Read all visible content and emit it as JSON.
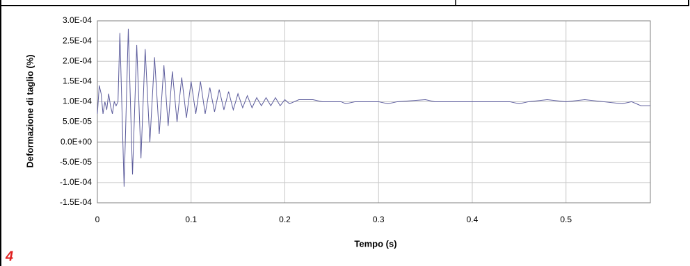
{
  "page_label": "4",
  "chart_data": {
    "type": "line",
    "x_label": "Tempo (s)",
    "y_label": "Deformazione di taglio (%)",
    "color": "#5c5c9c",
    "grid": true,
    "xlim": [
      0,
      0.59
    ],
    "xticks": [
      0,
      0.1,
      0.2,
      0.3,
      0.4,
      0.5
    ],
    "ylim": [
      -0.00015,
      0.0003
    ],
    "yticks": [
      {
        "value": -0.00015,
        "label": "-1.5E-04"
      },
      {
        "value": -0.0001,
        "label": "-1.0E-04"
      },
      {
        "value": -5e-05,
        "label": "-5.0E-05"
      },
      {
        "value": 0,
        "label": "0.0E+00"
      },
      {
        "value": 5e-05,
        "label": "5.0E-05"
      },
      {
        "value": 0.0001,
        "label": "1.0E-04"
      },
      {
        "value": 0.00015,
        "label": "1.5E-04"
      },
      {
        "value": 0.0002,
        "label": "2.0E-04"
      },
      {
        "value": 0.00025,
        "label": "2.5E-04"
      },
      {
        "value": 0.0003,
        "label": "3.0E-04"
      }
    ],
    "x": [
      0,
      0.002,
      0.004,
      0.006,
      0.008,
      0.01,
      0.012,
      0.014,
      0.016,
      0.018,
      0.02,
      0.022,
      0.024,
      0.0285,
      0.033,
      0.0375,
      0.042,
      0.0465,
      0.051,
      0.056,
      0.061,
      0.066,
      0.071,
      0.0755,
      0.08,
      0.085,
      0.09,
      0.095,
      0.1,
      0.105,
      0.11,
      0.115,
      0.12,
      0.125,
      0.13,
      0.135,
      0.14,
      0.145,
      0.15,
      0.155,
      0.16,
      0.165,
      0.17,
      0.175,
      0.18,
      0.185,
      0.19,
      0.195,
      0.2,
      0.205,
      0.21,
      0.215,
      0.23,
      0.24,
      0.26,
      0.265,
      0.275,
      0.3,
      0.31,
      0.32,
      0.35,
      0.36,
      0.4,
      0.44,
      0.45,
      0.46,
      0.48,
      0.5,
      0.52,
      0.54,
      0.56,
      0.57,
      0.58,
      0.59
    ],
    "values": [
      7e-05,
      0.00014,
      0.00012,
      7e-05,
      0.0001,
      8e-05,
      0.00012,
      9e-05,
      7e-05,
      0.0001,
      9e-05,
      0.0001,
      0.00027,
      -0.00011,
      0.00028,
      -8e-05,
      0.00024,
      -4e-05,
      0.00023,
      0,
      0.00021,
      2e-05,
      0.00019,
      4e-05,
      0.000175,
      5e-05,
      0.00016,
      6e-05,
      0.00015,
      7e-05,
      0.00015,
      7e-05,
      0.000135,
      7.5e-05,
      0.00013,
      8e-05,
      0.000125,
      8e-05,
      0.00012,
      8.5e-05,
      0.000115,
      8.5e-05,
      0.00011,
      9e-05,
      0.00011,
      9e-05,
      0.00011,
      9e-05,
      0.000105,
      9.5e-05,
      0.0001,
      0.000105,
      0.000105,
      0.0001,
      0.0001,
      9.5e-05,
      0.0001,
      0.0001,
      9.5e-05,
      0.0001,
      0.000105,
      0.0001,
      0.0001,
      0.0001,
      9.5e-05,
      0.0001,
      0.000105,
      0.0001,
      0.000105,
      0.0001,
      9.5e-05,
      0.0001,
      9e-05,
      9e-05
    ]
  }
}
